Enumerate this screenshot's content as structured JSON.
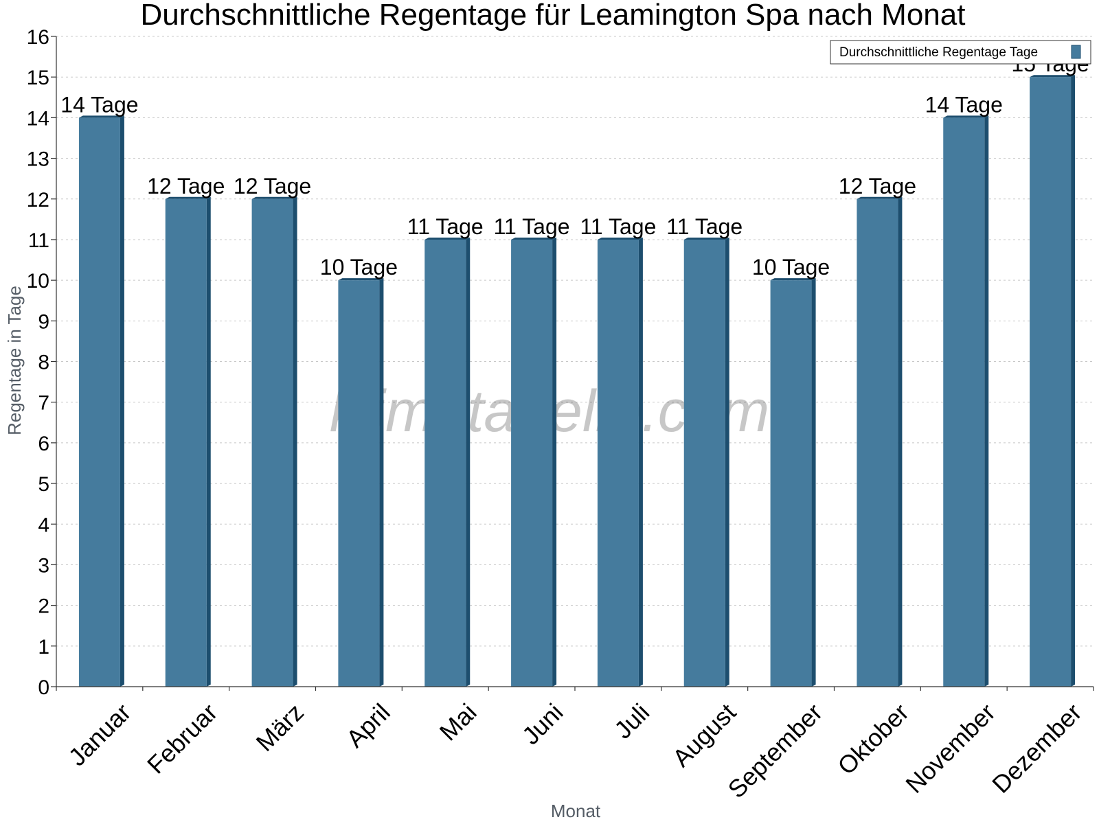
{
  "chart_data": {
    "type": "bar",
    "title": "Durchschnittliche Regentage für Leamington Spa nach Monat",
    "xlabel": "Monat",
    "ylabel": "Regentage in Tage",
    "ylim": [
      0,
      16
    ],
    "yticks": [
      0,
      1,
      2,
      3,
      4,
      5,
      6,
      7,
      8,
      9,
      10,
      11,
      12,
      13,
      14,
      15,
      16
    ],
    "grid": true,
    "legend_position": "top-right",
    "categories": [
      "Januar",
      "Februar",
      "März",
      "April",
      "Mai",
      "Juni",
      "Juli",
      "August",
      "September",
      "Oktober",
      "November",
      "Dezember"
    ],
    "series": [
      {
        "name": "Durchschnittliche Regentage Tage",
        "values": [
          14,
          12,
          12,
          10,
          11,
          11,
          11,
          11,
          10,
          12,
          14,
          15
        ],
        "data_labels": [
          "14 Tage",
          "12 Tage",
          "12 Tage",
          "10 Tage",
          "11 Tage",
          "11 Tage",
          "11 Tage",
          "11 Tage",
          "10 Tage",
          "12 Tage",
          "14 Tage",
          "15 Tage"
        ],
        "color": "#457b9d",
        "shadow_color": "#1d4e6e"
      }
    ],
    "watermark": "klimatabelle.com"
  }
}
